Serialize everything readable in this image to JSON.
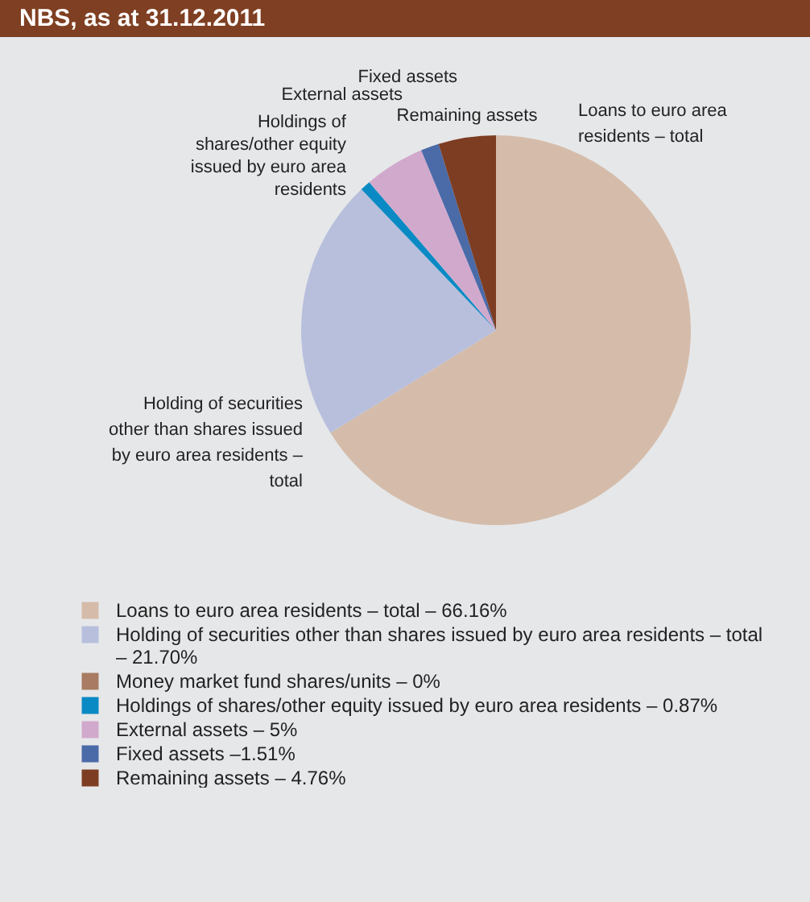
{
  "chart_data": {
    "type": "pie",
    "title": "NBS, as at 31.12.2011",
    "categories": [
      "Loans to euro area residents – total – 66.16%",
      "Holding of securities other than shares issued by euro area residents – total – 21.70%",
      "Money market fund shares/units – 0%",
      "Holdings of shares/other equity issued by euro area residents – 0.87%",
      "External assets – 5%",
      "Fixed assets –1.51%",
      "Remaining assets – 4.76%"
    ],
    "values": [
      66.16,
      21.7,
      0,
      0.87,
      5,
      1.51,
      4.76
    ],
    "colors": [
      "#d5bcaa",
      "#b8bfdc",
      "#a87b62",
      "#0a8ac4",
      "#d1a9cc",
      "#4a6aa8",
      "#7d3d22"
    ],
    "annotations": [
      "Loans to euro area residents – total",
      "Holding of securities other than shares issued by euro area residents – total",
      "Holdings of shares/other equity issued by euro area residents",
      "External assets",
      "Fixed assets",
      "Remaining assets"
    ],
    "legend": "bottom"
  }
}
